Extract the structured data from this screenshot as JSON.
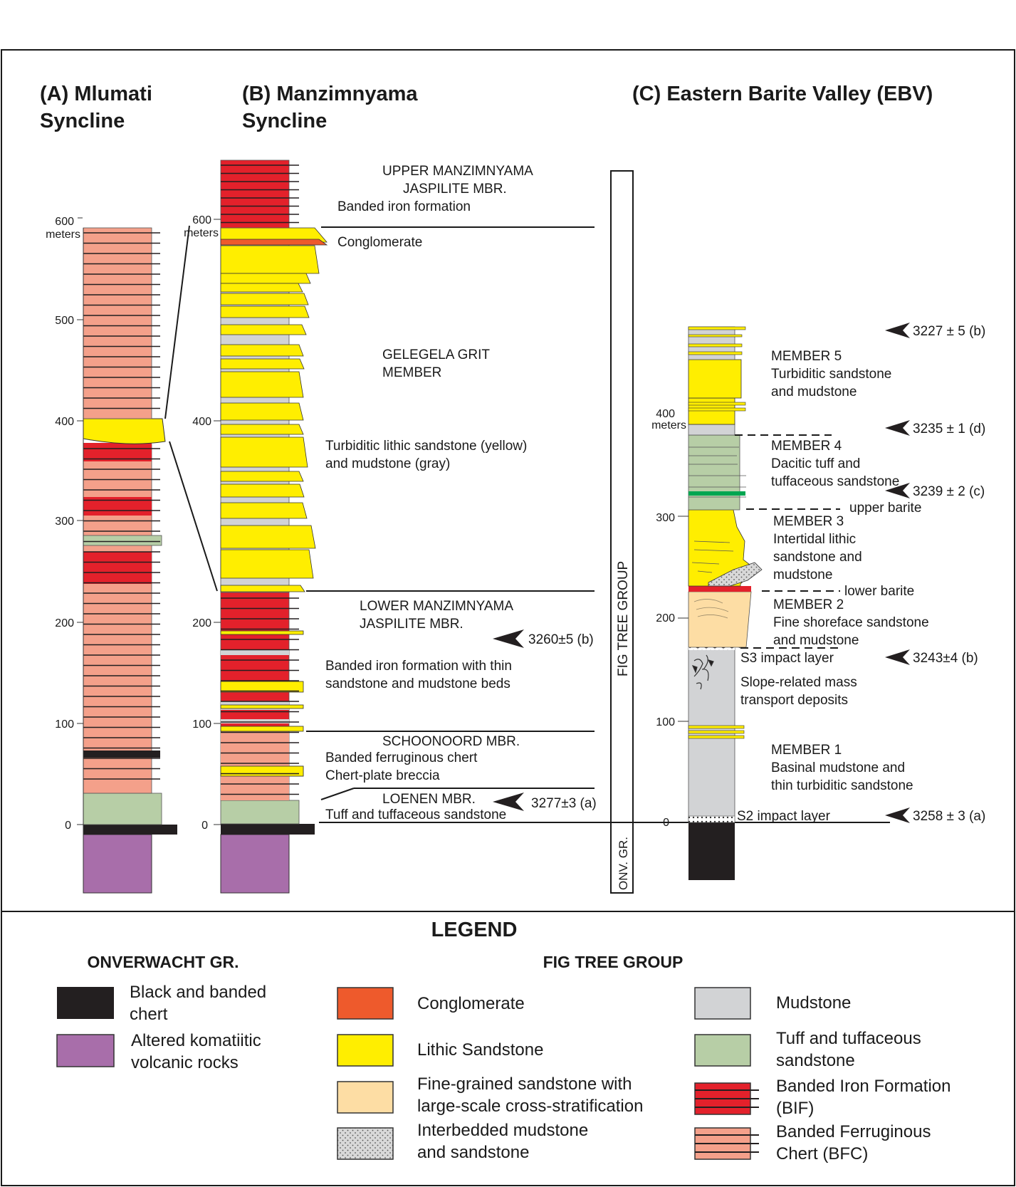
{
  "colors": {
    "chert": "#231f20",
    "komatiite": "#a86eaa",
    "conglomerate": "#ee5a2c",
    "lithic_sandstone": "#ffee00",
    "fine_sandstone": "#fddda4",
    "interbedded": "#d8d8d8",
    "mudstone": "#d2d3d5",
    "tuff": "#b7cea6",
    "bif": "#e3212b",
    "bfc": "#f4a08a"
  },
  "titles": {
    "a_line1": "(A)  Mlumati",
    "a_line2": "Syncline",
    "b_line1": "(B)  Manzimnyama",
    "b_line2": "Syncline",
    "c_line1": "(C)   Eastern Barite Valley (EBV)"
  },
  "scale": {
    "meters": "meters",
    "ticks_a": [
      "600",
      "500",
      "400",
      "300",
      "200",
      "100",
      "0"
    ],
    "ticks_b": [
      "600",
      "400",
      "200",
      "100",
      "0"
    ],
    "ticks_c": [
      "400",
      "300",
      "200",
      "100",
      "0"
    ]
  },
  "column_b_labels": {
    "upper_1": "UPPER  MANZIMNYAMA",
    "upper_2": "JASPILITE MBR.",
    "upper_3": "Banded iron formation",
    "conglomerate": "Conglomerate",
    "gelegela_1": "GELEGELA GRIT",
    "gelegela_2": "MEMBER",
    "turb_1": "Turbiditic lithic sandstone (yellow)",
    "turb_2": "and mudstone (gray)",
    "lower_1": "LOWER  MANZIMNYAMA",
    "lower_2": "JASPILITE MBR.",
    "bif_1": "Banded iron formation with thin",
    "bif_2": "sandstone and mudstone beds",
    "schoon_1": "SCHOONOORD MBR.",
    "schoon_2": "Banded ferruginous chert",
    "schoon_3": "Chert-plate breccia",
    "loenen_1": "LOENEN MBR.",
    "loenen_2": "Tuff and tuffaceous sandstone",
    "age_1": "3260±5 (b)",
    "age_2": "3277±3 (a)"
  },
  "group_labels": {
    "fig_tree": "FIG TREE GROUP",
    "onv": "ONV. GR."
  },
  "column_c_labels": {
    "m5_1": "MEMBER 5",
    "m5_2": "Turbiditic sandstone",
    "m5_3": "and mudstone",
    "m4_1": "MEMBER 4",
    "m4_2": "Dacitic tuff and",
    "m4_3": "tuffaceous sandstone",
    "upper_barite": "upper barite",
    "m3_1": "MEMBER 3",
    "m3_2": "Intertidal lithic",
    "m3_3": "sandstone and",
    "m3_4": "mudstone",
    "lower_barite": "lower barite",
    "m2_1": "MEMBER 2",
    "m2_2": "Fine shoreface sandstone",
    "m2_3": "and mudstone",
    "s3": "S3 impact layer",
    "slope_1": "Slope-related mass",
    "slope_2": "transport deposits",
    "m1_1": "MEMBER 1",
    "m1_2": "Basinal mudstone and",
    "m1_3": "thin turbiditic sandstone",
    "s2": "S2 impact layer",
    "age_1": "3227 ± 5  (b)",
    "age_2": "3235 ± 1  (d)",
    "age_3": "3239 ± 2  (c)",
    "age_4": "3243±4  (b)",
    "age_5": "3258 ± 3  (a)"
  },
  "legend": {
    "title": "LEGEND",
    "onverwacht": "ONVERWACHT GR.",
    "figtree": "FIG  TREE  GROUP",
    "chert_1": "Black and banded",
    "chert_2": "chert",
    "komatiite_1": "Altered komatiitic",
    "komatiite_2": "volcanic rocks",
    "conglomerate": "Conglomerate",
    "lithic": "Lithic Sandstone",
    "fine_1": "Fine-grained sandstone with",
    "fine_2": "large-scale cross-stratification",
    "inter_1": "Interbedded mudstone",
    "inter_2": "and sandstone",
    "mudstone": "Mudstone",
    "tuff_1": "Tuff and tuffaceous",
    "tuff_2": "sandstone",
    "bif_1": "Banded Iron Formation",
    "bif_2": "(BIF)",
    "bfc_1": "Banded Ferruginous",
    "bfc_2": "Chert (BFC)"
  }
}
